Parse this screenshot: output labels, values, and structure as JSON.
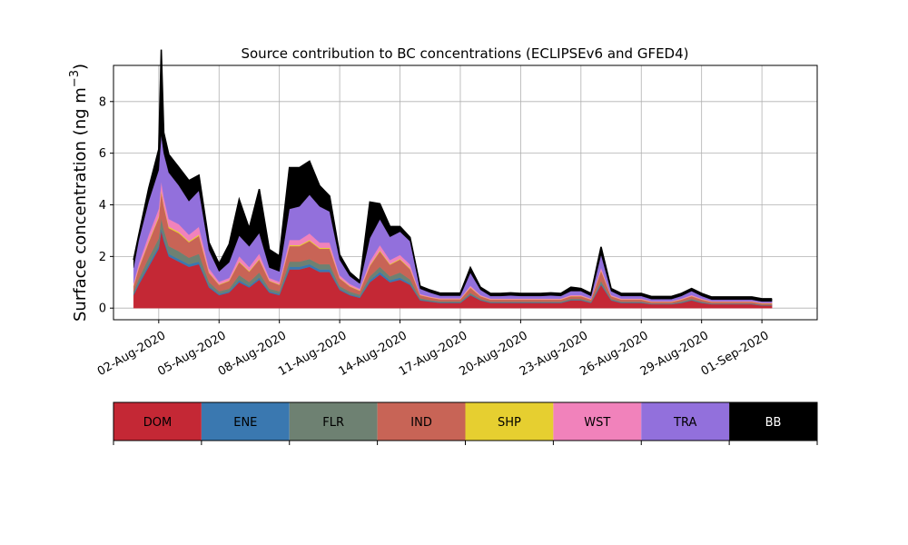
{
  "chart_data": {
    "type": "area",
    "stacked": true,
    "title": "Source contribution to BC concentrations (ECLIPSEv6 and GFED4)",
    "ylabel_main": "Surface concentration (ng m",
    "ylabel_sup": "−3",
    "ylabel_close": ")",
    "xlabel": "",
    "ylim": [
      -0.45,
      9.4
    ],
    "xlim_days": [
      -1.25,
      33.75
    ],
    "grid": true,
    "legend_placement": "bottom colorbar",
    "y_ticks": [
      {
        "value": 0,
        "label": "0"
      },
      {
        "value": 2,
        "label": "2"
      },
      {
        "value": 4,
        "label": "4"
      },
      {
        "value": 6,
        "label": "6"
      },
      {
        "value": 8,
        "label": "8"
      }
    ],
    "x_ticks": [
      {
        "day": 1,
        "label": "02-Aug-2020"
      },
      {
        "day": 4,
        "label": "05-Aug-2020"
      },
      {
        "day": 7,
        "label": "08-Aug-2020"
      },
      {
        "day": 10,
        "label": "11-Aug-2020"
      },
      {
        "day": 13,
        "label": "14-Aug-2020"
      },
      {
        "day": 16,
        "label": "17-Aug-2020"
      },
      {
        "day": 19,
        "label": "20-Aug-2020"
      },
      {
        "day": 22,
        "label": "23-Aug-2020"
      },
      {
        "day": 25,
        "label": "26-Aug-2020"
      },
      {
        "day": 28,
        "label": "29-Aug-2020"
      },
      {
        "day": 31,
        "label": "01-Sep-2020"
      }
    ],
    "x_dates": [
      "2020-07-31T18:00",
      "2020-08-01T00:00",
      "2020-08-01T12:00",
      "2020-08-02T00:00",
      "2020-08-02T03:00",
      "2020-08-02T06:00",
      "2020-08-02T12:00",
      "2020-08-03T00:00",
      "2020-08-03T12:00",
      "2020-08-04T00:00",
      "2020-08-04T12:00",
      "2020-08-05T00:00",
      "2020-08-05T12:00",
      "2020-08-06T00:00",
      "2020-08-06T12:00",
      "2020-08-07T00:00",
      "2020-08-07T12:00",
      "2020-08-08T00:00",
      "2020-08-08T12:00",
      "2020-08-09T00:00",
      "2020-08-09T12:00",
      "2020-08-10T00:00",
      "2020-08-10T12:00",
      "2020-08-11T00:00",
      "2020-08-11T12:00",
      "2020-08-12T00:00",
      "2020-08-12T12:00",
      "2020-08-13T00:00",
      "2020-08-13T12:00",
      "2020-08-14T00:00",
      "2020-08-14T12:00",
      "2020-08-15T00:00",
      "2020-08-15T12:00",
      "2020-08-16T00:00",
      "2020-08-16T12:00",
      "2020-08-17T00:00",
      "2020-08-17T12:00",
      "2020-08-18T00:00",
      "2020-08-18T12:00",
      "2020-08-19T00:00",
      "2020-08-19T12:00",
      "2020-08-20T00:00",
      "2020-08-20T12:00",
      "2020-08-21T00:00",
      "2020-08-21T12:00",
      "2020-08-22T00:00",
      "2020-08-22T12:00",
      "2020-08-23T00:00",
      "2020-08-23T12:00",
      "2020-08-24T00:00",
      "2020-08-24T12:00",
      "2020-08-25T00:00",
      "2020-08-25T12:00",
      "2020-08-26T00:00",
      "2020-08-26T12:00",
      "2020-08-27T00:00",
      "2020-08-27T12:00",
      "2020-08-28T00:00",
      "2020-08-28T12:00",
      "2020-08-29T00:00",
      "2020-08-29T12:00",
      "2020-08-30T00:00",
      "2020-08-30T12:00",
      "2020-08-31T00:00",
      "2020-08-31T12:00",
      "2020-09-01T00:00",
      "2020-09-01T12:00"
    ],
    "series": [
      {
        "name": "DOM",
        "color": "#c42835",
        "values": [
          0.5,
          0.9,
          1.6,
          2.3,
          3.0,
          2.6,
          2.0,
          1.8,
          1.6,
          1.7,
          0.8,
          0.5,
          0.6,
          1.0,
          0.8,
          1.1,
          0.6,
          0.5,
          1.5,
          1.5,
          1.6,
          1.4,
          1.4,
          0.7,
          0.5,
          0.4,
          1.0,
          1.3,
          1.0,
          1.1,
          0.9,
          0.3,
          0.25,
          0.2,
          0.2,
          0.2,
          0.5,
          0.3,
          0.2,
          0.2,
          0.2,
          0.2,
          0.2,
          0.2,
          0.2,
          0.2,
          0.3,
          0.3,
          0.2,
          0.9,
          0.3,
          0.2,
          0.2,
          0.2,
          0.15,
          0.15,
          0.15,
          0.2,
          0.3,
          0.2,
          0.15,
          0.15,
          0.15,
          0.15,
          0.15,
          0.1,
          0.1
        ]
      },
      {
        "name": "ENE",
        "color": "#3a78b0",
        "values": [
          0.05,
          0.08,
          0.1,
          0.1,
          0.1,
          0.1,
          0.1,
          0.1,
          0.1,
          0.1,
          0.06,
          0.05,
          0.05,
          0.08,
          0.06,
          0.08,
          0.05,
          0.05,
          0.1,
          0.1,
          0.1,
          0.1,
          0.1,
          0.05,
          0.04,
          0.04,
          0.08,
          0.1,
          0.08,
          0.08,
          0.06,
          0.03,
          0.02,
          0.02,
          0.02,
          0.02,
          0.03,
          0.02,
          0.02,
          0.02,
          0.02,
          0.02,
          0.02,
          0.02,
          0.02,
          0.02,
          0.02,
          0.02,
          0.02,
          0.05,
          0.02,
          0.02,
          0.02,
          0.02,
          0.01,
          0.01,
          0.01,
          0.02,
          0.02,
          0.02,
          0.01,
          0.01,
          0.01,
          0.01,
          0.01,
          0.01,
          0.01
        ]
      },
      {
        "name": "FLR",
        "color": "#6e8172",
        "values": [
          0.1,
          0.15,
          0.25,
          0.3,
          0.4,
          0.35,
          0.3,
          0.3,
          0.25,
          0.3,
          0.15,
          0.1,
          0.1,
          0.2,
          0.15,
          0.2,
          0.1,
          0.1,
          0.2,
          0.2,
          0.2,
          0.2,
          0.2,
          0.1,
          0.1,
          0.08,
          0.15,
          0.2,
          0.15,
          0.2,
          0.15,
          0.05,
          0.04,
          0.04,
          0.04,
          0.04,
          0.06,
          0.04,
          0.03,
          0.03,
          0.03,
          0.03,
          0.03,
          0.03,
          0.03,
          0.03,
          0.04,
          0.04,
          0.03,
          0.1,
          0.04,
          0.03,
          0.03,
          0.03,
          0.02,
          0.02,
          0.02,
          0.03,
          0.04,
          0.03,
          0.02,
          0.02,
          0.02,
          0.02,
          0.02,
          0.02,
          0.02
        ]
      },
      {
        "name": "IND",
        "color": "#c86456",
        "values": [
          0.2,
          0.4,
          0.6,
          0.8,
          1.0,
          0.9,
          0.7,
          0.7,
          0.6,
          0.7,
          0.35,
          0.25,
          0.3,
          0.5,
          0.4,
          0.5,
          0.3,
          0.25,
          0.6,
          0.6,
          0.7,
          0.6,
          0.6,
          0.3,
          0.2,
          0.15,
          0.4,
          0.6,
          0.45,
          0.5,
          0.4,
          0.12,
          0.1,
          0.08,
          0.08,
          0.08,
          0.2,
          0.1,
          0.08,
          0.08,
          0.08,
          0.08,
          0.08,
          0.08,
          0.08,
          0.08,
          0.1,
          0.1,
          0.08,
          0.4,
          0.1,
          0.08,
          0.08,
          0.08,
          0.06,
          0.06,
          0.06,
          0.08,
          0.1,
          0.08,
          0.06,
          0.06,
          0.06,
          0.06,
          0.06,
          0.05,
          0.05
        ]
      },
      {
        "name": "SHP",
        "color": "#e6cf30",
        "values": [
          0.02,
          0.03,
          0.04,
          0.05,
          0.06,
          0.05,
          0.05,
          0.05,
          0.04,
          0.05,
          0.03,
          0.02,
          0.02,
          0.03,
          0.03,
          0.03,
          0.02,
          0.02,
          0.04,
          0.04,
          0.04,
          0.04,
          0.04,
          0.02,
          0.02,
          0.02,
          0.03,
          0.04,
          0.03,
          0.03,
          0.03,
          0.01,
          0.01,
          0.01,
          0.01,
          0.01,
          0.02,
          0.01,
          0.01,
          0.01,
          0.01,
          0.01,
          0.01,
          0.01,
          0.01,
          0.01,
          0.01,
          0.01,
          0.01,
          0.02,
          0.01,
          0.01,
          0.01,
          0.01,
          0.01,
          0.01,
          0.01,
          0.01,
          0.01,
          0.01,
          0.01,
          0.01,
          0.01,
          0.01,
          0.01,
          0.01,
          0.01
        ]
      },
      {
        "name": "WST",
        "color": "#f182bb",
        "values": [
          0.1,
          0.15,
          0.25,
          0.3,
          0.35,
          0.3,
          0.3,
          0.3,
          0.25,
          0.3,
          0.15,
          0.1,
          0.1,
          0.2,
          0.15,
          0.2,
          0.1,
          0.1,
          0.2,
          0.2,
          0.25,
          0.2,
          0.2,
          0.1,
          0.08,
          0.06,
          0.15,
          0.2,
          0.15,
          0.15,
          0.15,
          0.04,
          0.03,
          0.03,
          0.03,
          0.03,
          0.06,
          0.04,
          0.03,
          0.03,
          0.03,
          0.03,
          0.03,
          0.03,
          0.03,
          0.03,
          0.04,
          0.04,
          0.03,
          0.1,
          0.04,
          0.03,
          0.03,
          0.03,
          0.02,
          0.02,
          0.02,
          0.03,
          0.04,
          0.03,
          0.02,
          0.02,
          0.02,
          0.02,
          0.02,
          0.02,
          0.02
        ]
      },
      {
        "name": "TRA",
        "color": "#9270dc",
        "values": [
          0.6,
          0.9,
          1.3,
          1.5,
          1.8,
          1.7,
          1.8,
          1.5,
          1.3,
          1.4,
          0.7,
          0.4,
          0.6,
          0.8,
          0.8,
          0.8,
          0.4,
          0.4,
          1.2,
          1.3,
          1.5,
          1.4,
          1.2,
          0.6,
          0.3,
          0.2,
          0.9,
          1.0,
          0.9,
          0.9,
          0.9,
          0.2,
          0.15,
          0.1,
          0.1,
          0.1,
          0.5,
          0.2,
          0.1,
          0.1,
          0.12,
          0.1,
          0.1,
          0.1,
          0.12,
          0.1,
          0.15,
          0.15,
          0.1,
          0.5,
          0.15,
          0.1,
          0.1,
          0.1,
          0.08,
          0.08,
          0.08,
          0.1,
          0.15,
          0.1,
          0.06,
          0.06,
          0.06,
          0.06,
          0.06,
          0.05,
          0.05
        ]
      },
      {
        "name": "BB",
        "color": "#000000",
        "values": [
          0.3,
          0.2,
          0.5,
          0.8,
          3.3,
          0.8,
          0.7,
          0.7,
          0.8,
          0.6,
          0.3,
          0.3,
          0.7,
          1.4,
          0.7,
          1.7,
          0.7,
          0.6,
          1.6,
          1.5,
          1.3,
          0.8,
          0.6,
          0.2,
          0.15,
          0.1,
          1.4,
          0.6,
          0.4,
          0.2,
          0.15,
          0.1,
          0.1,
          0.1,
          0.1,
          0.1,
          0.2,
          0.1,
          0.1,
          0.1,
          0.1,
          0.1,
          0.1,
          0.1,
          0.1,
          0.1,
          0.15,
          0.1,
          0.1,
          0.3,
          0.1,
          0.1,
          0.1,
          0.1,
          0.1,
          0.1,
          0.1,
          0.1,
          0.1,
          0.1,
          0.1,
          0.1,
          0.1,
          0.1,
          0.1,
          0.1,
          0.1
        ]
      }
    ]
  },
  "legend": {
    "items": [
      {
        "label": "DOM",
        "color": "#c42835",
        "text_color": "#000000"
      },
      {
        "label": "ENE",
        "color": "#3a78b0",
        "text_color": "#000000"
      },
      {
        "label": "FLR",
        "color": "#6e8172",
        "text_color": "#000000"
      },
      {
        "label": "IND",
        "color": "#c86456",
        "text_color": "#000000"
      },
      {
        "label": "SHP",
        "color": "#e6cf30",
        "text_color": "#000000"
      },
      {
        "label": "WST",
        "color": "#f182bb",
        "text_color": "#000000"
      },
      {
        "label": "TRA",
        "color": "#9270dc",
        "text_color": "#000000"
      },
      {
        "label": "BB",
        "color": "#000000",
        "text_color": "#ffffff"
      }
    ]
  }
}
